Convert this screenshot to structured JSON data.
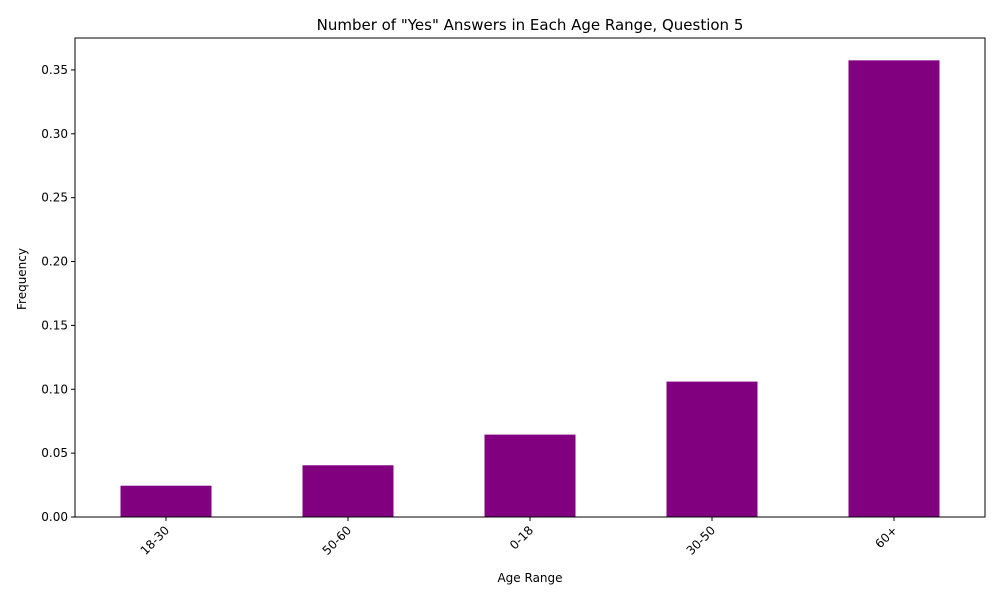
{
  "chart_data": {
    "type": "bar",
    "title": "Number of \"Yes\" Answers in Each Age Range, Question 5",
    "xlabel": "Age Range",
    "ylabel": "Frequency",
    "categories": [
      "18-30",
      "50-60",
      "0-18",
      "30-50",
      "60+"
    ],
    "values": [
      0.0245,
      0.0405,
      0.0645,
      0.106,
      0.3575
    ],
    "yticks": [
      "0.00",
      "0.05",
      "0.10",
      "0.15",
      "0.20",
      "0.25",
      "0.30",
      "0.35"
    ],
    "ylim": [
      0,
      0.375
    ],
    "bar_color": "#800080",
    "grid": false,
    "legend": "none"
  }
}
